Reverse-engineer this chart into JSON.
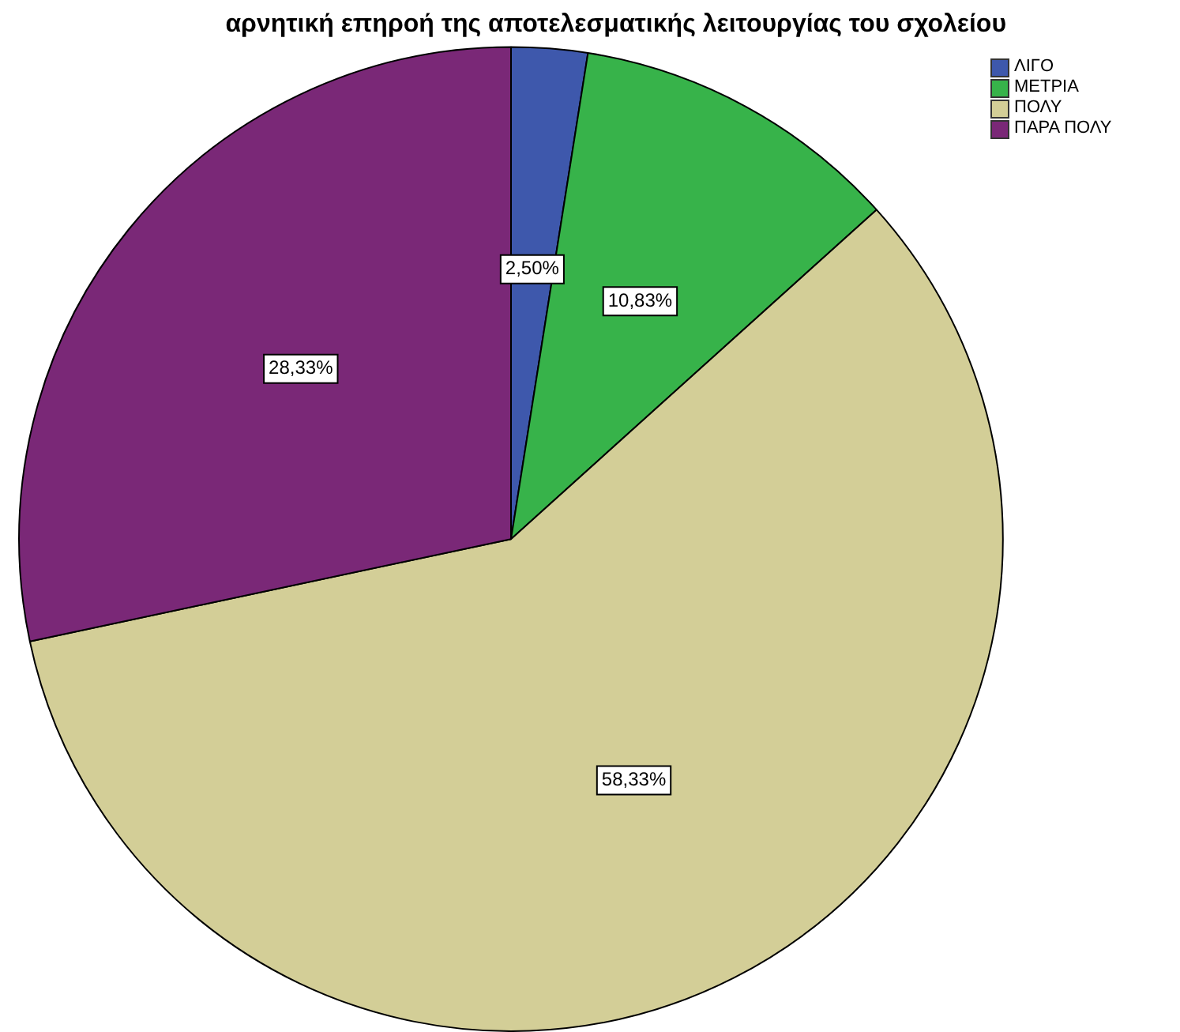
{
  "chart_data": {
    "type": "pie",
    "title": "αρνητική επηροή της αποτελεσματικής λειτουργίας του σχολείου",
    "categories": [
      "ΛΙΓΟ",
      "ΜΕΤΡΙΑ",
      "ΠΟΛΥ",
      "ΠΑΡΑ ΠΟΛΥ"
    ],
    "values": [
      2.5,
      10.83,
      58.33,
      28.33
    ],
    "colors": [
      "#3e58ac",
      "#37b34a",
      "#d3ce97",
      "#7a2877"
    ],
    "value_labels": [
      "2,50%",
      "10,83%",
      "58,33%",
      "28,33%"
    ],
    "legend": "top right"
  }
}
